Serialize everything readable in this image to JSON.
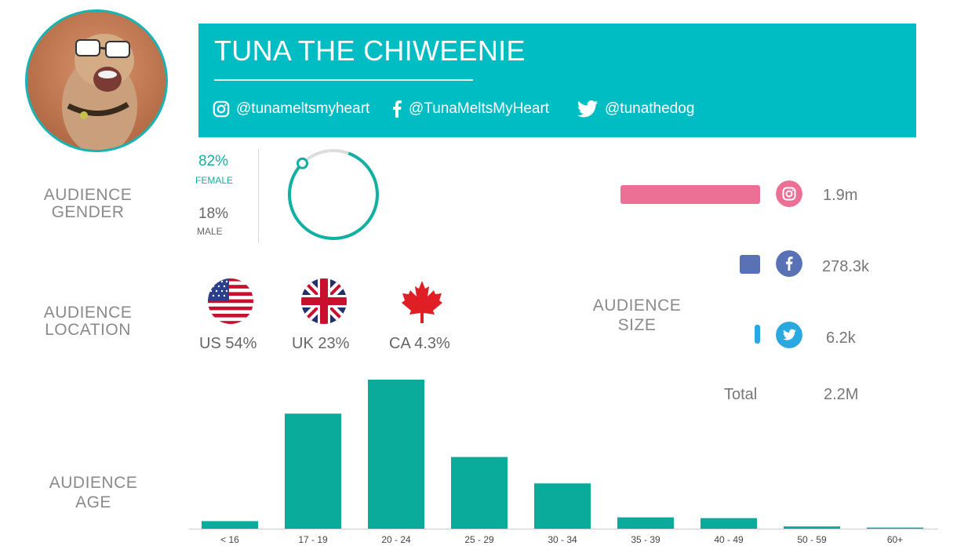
{
  "profile": {
    "name": "TUNA THE CHIWEENIE",
    "handles": [
      {
        "icon": "instagram-icon",
        "text": "@tunameltsmyheart"
      },
      {
        "icon": "facebook-icon",
        "text": "@TunaMeltsMyHeart"
      },
      {
        "icon": "twitter-icon",
        "text": "@tunathedog"
      }
    ]
  },
  "colors": {
    "banner": "#00bdc4",
    "accent": "#11b0a3",
    "instagram": "#ec7096",
    "facebook": "#5872b5",
    "twitter": "#29a9df"
  },
  "gender": {
    "label_line1": "AUDIENCE",
    "label_line2": "GENDER",
    "female_pct": "82%",
    "female_label": "FEMALE",
    "female_value": 82,
    "male_pct": "18%",
    "male_label": "MALE"
  },
  "location": {
    "label_line1": "AUDIENCE",
    "label_line2": "LOCATION",
    "countries": [
      {
        "flag": "us-flag-icon",
        "text": "US 54%"
      },
      {
        "flag": "uk-flag-icon",
        "text": "UK 23%"
      },
      {
        "flag": "canada-flag-icon",
        "text": "CA 4.3%"
      }
    ]
  },
  "audience_size": {
    "label_line1": "AUDIENCE",
    "label_line2": "SIZE",
    "platforms": [
      {
        "name": "instagram",
        "icon": "instagram-icon",
        "display": "1.9m",
        "value": 1900000
      },
      {
        "name": "facebook",
        "icon": "facebook-icon",
        "display": "278.3k",
        "value": 278300
      },
      {
        "name": "twitter",
        "icon": "twitter-icon",
        "display": "6.2k",
        "value": 6200
      }
    ],
    "total_label": "Total",
    "total_value": "2.2M"
  },
  "age": {
    "label_line1": "AUDIENCE",
    "label_line2": "AGE"
  },
  "chart_data": {
    "type": "bar",
    "categories": [
      "< 16",
      "17 - 19",
      "20 - 24",
      "25 - 29",
      "30 - 34",
      "35 - 39",
      "40 - 49",
      "50 - 59",
      "60+"
    ],
    "values": [
      2.0,
      30.5,
      39.5,
      19.0,
      12.0,
      3.0,
      2.8,
      0.6,
      0.3
    ],
    "ylim": [
      0,
      40
    ],
    "grid": false,
    "color": "#0aab9b"
  }
}
